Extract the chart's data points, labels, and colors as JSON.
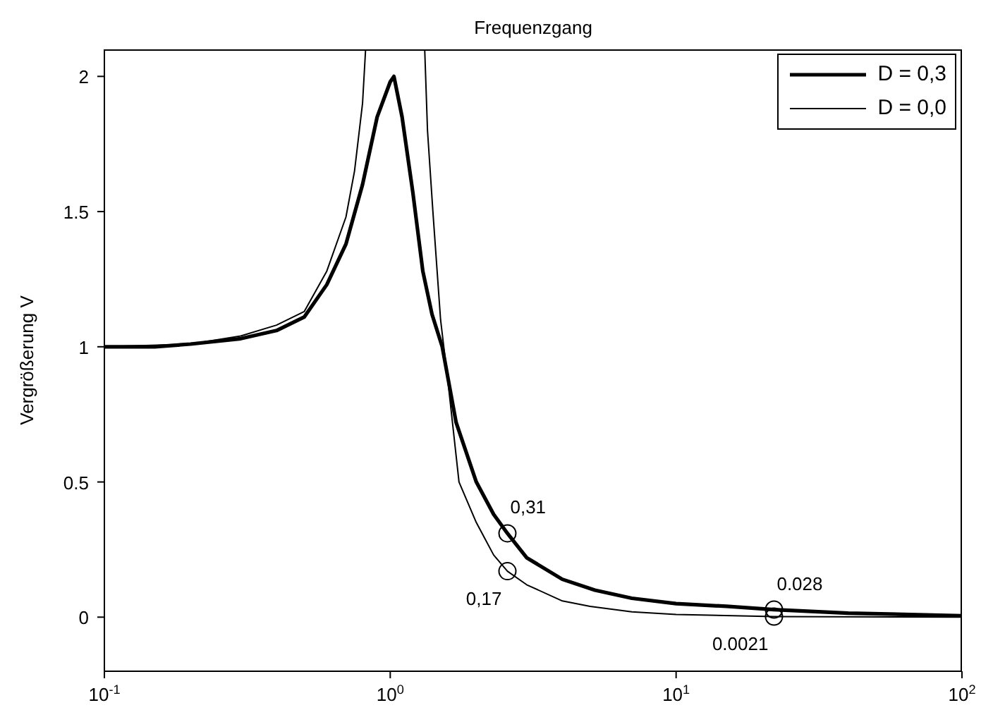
{
  "chart_data": {
    "type": "line",
    "title": "Frequenzgang",
    "ylabel": "Vergrößerung V",
    "log": "x",
    "xlim": [
      0.1,
      100
    ],
    "xticks": [
      {
        "value": 0.1,
        "label": "10$^{-1}$"
      },
      {
        "value": 1,
        "label": "10$^{0}$"
      },
      {
        "value": 10,
        "label": "10$^{1}$"
      },
      {
        "value": 100,
        "label": "10$^{2}$"
      }
    ],
    "ylim": [
      -0.2,
      2.1
    ],
    "yticks": [
      0,
      0.5,
      1,
      1.5,
      2
    ],
    "grid": false,
    "legend": "top right",
    "marker": "none",
    "line_style": "solid",
    "series": [
      {
        "name": "D = 0,3",
        "color": "#000000",
        "x": [
          0.1,
          0.15,
          0.2,
          0.3,
          0.4,
          0.5,
          0.6,
          0.7,
          0.8,
          0.9,
          1.0,
          1.03,
          1.1,
          1.2,
          1.3,
          1.4,
          1.52,
          1.7,
          2.0,
          2.3,
          2.57,
          3,
          4,
          5.2,
          7,
          10,
          15,
          22,
          40,
          100
        ],
        "values": [
          1,
          1,
          1.01,
          1.03,
          1.06,
          1.11,
          1.23,
          1.38,
          1.6,
          1.85,
          1.98,
          2.0,
          1.85,
          1.57,
          1.28,
          1.12,
          1.0,
          0.72,
          0.5,
          0.38,
          0.31,
          0.22,
          0.14,
          0.1,
          0.07,
          0.05,
          0.04,
          0.028,
          0.015,
          0.005
        ]
      },
      {
        "name": "D = 0,0",
        "color": "#000000",
        "x": [
          0.1,
          0.2,
          0.3,
          0.4,
          0.5,
          0.6,
          0.7,
          0.75,
          0.8,
          0.82,
          1.0,
          1.32,
          1.35,
          1.41,
          1.5,
          1.6,
          1.74,
          2,
          2.3,
          2.57,
          3,
          4,
          5,
          7,
          10,
          22,
          100
        ],
        "values": [
          1,
          1.01,
          1.04,
          1.08,
          1.13,
          1.28,
          1.48,
          1.65,
          1.9,
          2.1,
          null,
          2.1,
          1.8,
          1.5,
          1.1,
          0.85,
          0.5,
          0.35,
          0.23,
          0.17,
          0.12,
          0.06,
          0.04,
          0.02,
          0.01,
          0.0021,
          0
        ]
      },
      {
        "type": "scatter",
        "marker": "circle",
        "color": "#000000",
        "x": [
          2.57,
          2.57,
          22,
          22
        ],
        "values": [
          0.31,
          0.17,
          0.028,
          0.0021
        ],
        "value_labels": [
          "0,31",
          "0,17",
          "0.028",
          "0.0021"
        ]
      }
    ]
  }
}
